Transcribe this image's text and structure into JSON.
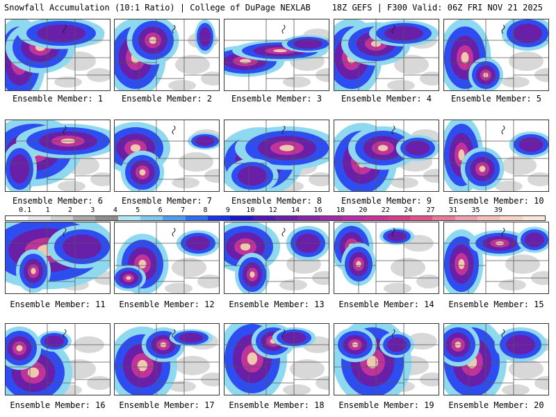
{
  "header": {
    "title_left": "Snowfall Accumulation (10:1 Ratio) | College of DuPage NEXLAB",
    "title_right": "18Z GEFS | F300 Valid: 06Z FRI NOV 21 2025"
  },
  "legend": {
    "ticks": [
      "0.1",
      "1",
      "2",
      "3",
      "4",
      "5",
      "6",
      "7",
      "8",
      "9",
      "10",
      "12",
      "14",
      "16",
      "18",
      "20",
      "22",
      "24",
      "27",
      "31",
      "35",
      "39"
    ],
    "colors": [
      "#ffffff",
      "#e6e6e6",
      "#cfcfcf",
      "#a8a8a8",
      "#8c8c8c",
      "#b3e6f5",
      "#80c8ee",
      "#4f9bee",
      "#2e6df0",
      "#1a33e6",
      "#1a1acc",
      "#4d1ab3",
      "#6a1fa8",
      "#8526a6",
      "#a02aa8",
      "#b82da8",
      "#c83399",
      "#d63c8a",
      "#e0528a",
      "#e87a9a",
      "#efa0b0",
      "#f3bfb8",
      "#f6d5c8",
      "#f9e6da"
    ]
  },
  "panels": [
    {
      "label": "Ensemble Member: 1"
    },
    {
      "label": "Ensemble Member: 2"
    },
    {
      "label": "Ensemble Member: 3"
    },
    {
      "label": "Ensemble Member: 4"
    },
    {
      "label": "Ensemble Member: 5"
    },
    {
      "label": "Ensemble Member: 6"
    },
    {
      "label": "Ensemble Member: 7"
    },
    {
      "label": "Ensemble Member: 8"
    },
    {
      "label": "Ensemble Member: 9"
    },
    {
      "label": "Ensemble Member: 10"
    },
    {
      "label": "Ensemble Member: 11"
    },
    {
      "label": "Ensemble Member: 12"
    },
    {
      "label": "Ensemble Member: 13"
    },
    {
      "label": "Ensemble Member: 14"
    },
    {
      "label": "Ensemble Member: 15"
    },
    {
      "label": "Ensemble Member: 16"
    },
    {
      "label": "Ensemble Member: 17"
    },
    {
      "label": "Ensemble Member: 18"
    },
    {
      "label": "Ensemble Member: 19"
    },
    {
      "label": "Ensemble Member: 20"
    }
  ]
}
